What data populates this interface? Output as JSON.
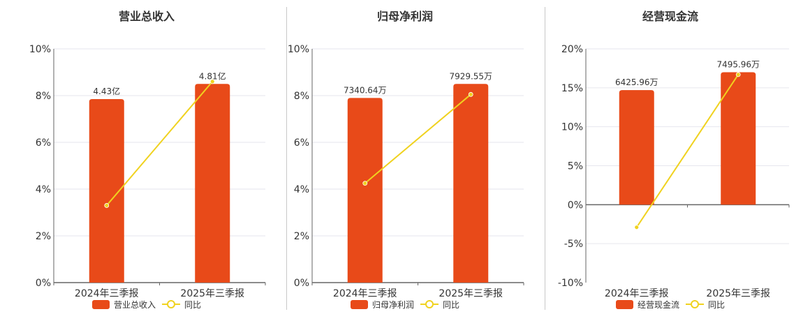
{
  "colors": {
    "bar": "#E84A19",
    "line": "#F0D21F",
    "axis": "#666666",
    "grid": "#E6E6EE",
    "text": "#333333"
  },
  "chart_data": [
    {
      "type": "bar",
      "title": "营业总收入",
      "categories": [
        "2024年三季报",
        "2025年三季报"
      ],
      "series": [
        {
          "name": "营业总收入",
          "type": "bar",
          "values": [
            7.85,
            8.5
          ],
          "labels": [
            "4.43亿",
            "4.81亿"
          ]
        },
        {
          "name": "同比",
          "type": "line",
          "values": [
            3.3,
            8.6
          ]
        }
      ],
      "ylim": [
        0,
        10
      ],
      "yticks": [
        0,
        2,
        4,
        6,
        8,
        10
      ],
      "yunit": "%",
      "grid": true,
      "legend": "bottom-center"
    },
    {
      "type": "bar",
      "title": "归母净利润",
      "categories": [
        "2024年三季报",
        "2025年三季报"
      ],
      "series": [
        {
          "name": "归母净利润",
          "type": "bar",
          "values": [
            7.9,
            8.5
          ],
          "labels": [
            "7340.64万",
            "7929.55万"
          ]
        },
        {
          "name": "同比",
          "type": "line",
          "values": [
            4.25,
            8.05
          ]
        }
      ],
      "ylim": [
        0,
        10
      ],
      "yticks": [
        0,
        2,
        4,
        6,
        8,
        10
      ],
      "yunit": "%",
      "grid": true,
      "legend": "bottom-center"
    },
    {
      "type": "bar",
      "title": "经营现金流",
      "categories": [
        "2024年三季报",
        "2025年三季报"
      ],
      "series": [
        {
          "name": "经营现金流",
          "type": "bar",
          "values": [
            14.7,
            17.0
          ],
          "labels": [
            "6425.96万",
            "7495.96万"
          ]
        },
        {
          "name": "同比",
          "type": "line",
          "values": [
            -2.9,
            16.7
          ]
        }
      ],
      "ylim": [
        -10,
        20
      ],
      "yticks": [
        -10,
        -5,
        0,
        5,
        10,
        15,
        20
      ],
      "yunit": "%",
      "grid": true,
      "legend": "bottom-center"
    }
  ]
}
